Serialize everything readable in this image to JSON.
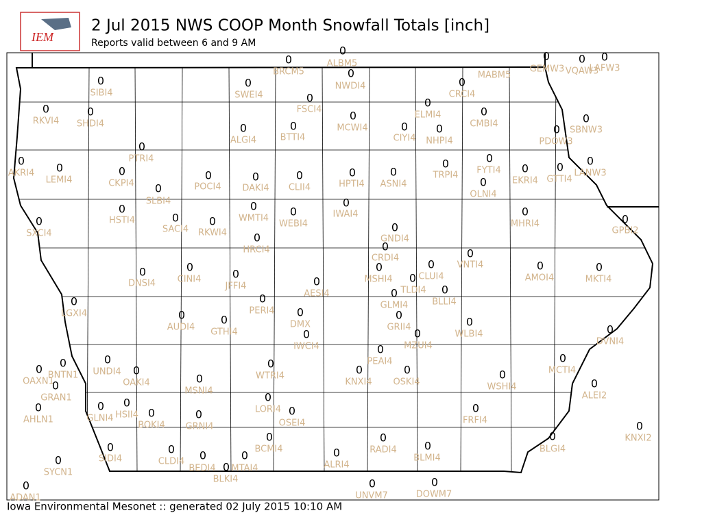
{
  "header": {
    "title": "2 Jul 2015 NWS COOP Month Snowfall Totals [inch]",
    "subtitle": "Reports valid between 6 and 9 AM"
  },
  "logo": {
    "text": "IEM"
  },
  "stations": [
    {
      "id": "BRCM5",
      "value": 0
    },
    {
      "id": "ALBM5",
      "value": 0
    },
    {
      "id": "NWDI4",
      "value": 0
    },
    {
      "id": "MABM5"
    },
    {
      "id": "GEMW3",
      "value": 0
    },
    {
      "id": "VQAW3",
      "value": 0
    },
    {
      "id": "LAFW3",
      "value": 0
    },
    {
      "id": "SIBI4",
      "value": 0
    },
    {
      "id": "SWEI4",
      "value": 0
    },
    {
      "id": "FSCI4",
      "value": 0
    },
    {
      "id": "CRCI4",
      "value": 0
    },
    {
      "id": "ELMI4",
      "value": 0
    },
    {
      "id": "RKVI4",
      "value": 0
    },
    {
      "id": "SHDI4",
      "value": 0
    },
    {
      "id": "MCWI4",
      "value": 0
    },
    {
      "id": "CMBI4",
      "value": 0
    },
    {
      "id": "SBNW3",
      "value": 0
    },
    {
      "id": "ALGI4",
      "value": 0
    },
    {
      "id": "BTTI4",
      "value": 0
    },
    {
      "id": "CIYI4",
      "value": 0
    },
    {
      "id": "NHPI4",
      "value": 0
    },
    {
      "id": "PDOW3",
      "value": 0
    },
    {
      "id": "PTRI4",
      "value": 0
    },
    {
      "id": "AKRI4",
      "value": 0
    },
    {
      "id": "LEMI4",
      "value": 0
    },
    {
      "id": "FYTI4",
      "value": 0
    },
    {
      "id": "GTTI4",
      "value": 0
    },
    {
      "id": "LANW3",
      "value": 0
    },
    {
      "id": "CKPI4",
      "value": 0
    },
    {
      "id": "POCI4",
      "value": 0
    },
    {
      "id": "DAKI4",
      "value": 0
    },
    {
      "id": "CLII4",
      "value": 0
    },
    {
      "id": "HPTI4",
      "value": 0
    },
    {
      "id": "ASNI4",
      "value": 0
    },
    {
      "id": "TRPI4",
      "value": 0
    },
    {
      "id": "EKRI4",
      "value": 0
    },
    {
      "id": "OLNI4",
      "value": 0
    },
    {
      "id": "SLBI4",
      "value": 0
    },
    {
      "id": "HSTI4",
      "value": 0
    },
    {
      "id": "SACI4",
      "value": 0
    },
    {
      "id": "RKWI4",
      "value": 0
    },
    {
      "id": "WMTI4",
      "value": 0
    },
    {
      "id": "WEBI4",
      "value": 0
    },
    {
      "id": "IWAI4",
      "value": 0
    },
    {
      "id": "MHRI4",
      "value": 0
    },
    {
      "id": "GPBI2",
      "value": 0
    },
    {
      "id": "SXCI4",
      "value": 0
    },
    {
      "id": "HRCI4",
      "value": 0
    },
    {
      "id": "GNDI4",
      "value": 0
    },
    {
      "id": "CRDI4",
      "value": 0
    },
    {
      "id": "VNTI4",
      "value": 0
    },
    {
      "id": "CLUI4",
      "value": 0
    },
    {
      "id": "AMOI4",
      "value": 0
    },
    {
      "id": "MKTI4",
      "value": 0
    },
    {
      "id": "DNSI4",
      "value": 0
    },
    {
      "id": "CINI4",
      "value": 0
    },
    {
      "id": "JFFI4",
      "value": 0
    },
    {
      "id": "MSHI4",
      "value": 0
    },
    {
      "id": "TLDI4",
      "value": 0
    },
    {
      "id": "AESI4",
      "value": 0
    },
    {
      "id": "BLLI4",
      "value": 0
    },
    {
      "id": "LGXI4",
      "value": 0
    },
    {
      "id": "PERI4",
      "value": 0
    },
    {
      "id": "GLMI4",
      "value": 0
    },
    {
      "id": "AUDI4",
      "value": 0
    },
    {
      "id": "GTHI4",
      "value": 0
    },
    {
      "id": "DMX",
      "value": 0
    },
    {
      "id": "GRII4",
      "value": 0
    },
    {
      "id": "WLBI4",
      "value": 0
    },
    {
      "id": "IWCI4",
      "value": 0
    },
    {
      "id": "MZUI4",
      "value": 0
    },
    {
      "id": "DVNI4",
      "value": 0
    },
    {
      "id": "PEAI4",
      "value": 0
    },
    {
      "id": "UNDI4",
      "value": 0
    },
    {
      "id": "OAKI4",
      "value": 0
    },
    {
      "id": "WTRI4",
      "value": 0
    },
    {
      "id": "KNXI4",
      "value": 0
    },
    {
      "id": "OSKI4",
      "value": 0
    },
    {
      "id": "MCTI4",
      "value": 0
    },
    {
      "id": "BNTN1",
      "value": 0
    },
    {
      "id": "OAXN1",
      "value": 0
    },
    {
      "id": "WSHI4",
      "value": 0
    },
    {
      "id": "MSNI4",
      "value": 0
    },
    {
      "id": "GRAN1",
      "value": 0
    },
    {
      "id": "ALEI2",
      "value": 0
    },
    {
      "id": "AHLN1",
      "value": 0
    },
    {
      "id": "GLNI4",
      "value": 0
    },
    {
      "id": "HSII4",
      "value": 0
    },
    {
      "id": "BOKI4",
      "value": 0
    },
    {
      "id": "GRNI4",
      "value": 0
    },
    {
      "id": "LORI4",
      "value": 0
    },
    {
      "id": "OSEI4",
      "value": 0
    },
    {
      "id": "FRFI4",
      "value": 0
    },
    {
      "id": "KNXI2",
      "value": 0
    },
    {
      "id": "BCMI4",
      "value": 0
    },
    {
      "id": "RADI4",
      "value": 0
    },
    {
      "id": "BLMI4",
      "value": 0
    },
    {
      "id": "BLGI4",
      "value": 0
    },
    {
      "id": "SIDI4",
      "value": 0
    },
    {
      "id": "CLDI4",
      "value": 0
    },
    {
      "id": "BEDI4",
      "value": 0
    },
    {
      "id": "MTAI4",
      "value": 0
    },
    {
      "id": "BLKI4",
      "value": 0
    },
    {
      "id": "ALRI4",
      "value": 0
    },
    {
      "id": "SYCN1",
      "value": 0
    },
    {
      "id": "UNVM7",
      "value": 0
    },
    {
      "id": "DOWM7",
      "value": 0
    },
    {
      "id": "ADAN1",
      "value": 0
    }
  ],
  "footer": "Iowa Environmental Mesonet :: generated 02 July 2015 10:10 AM"
}
